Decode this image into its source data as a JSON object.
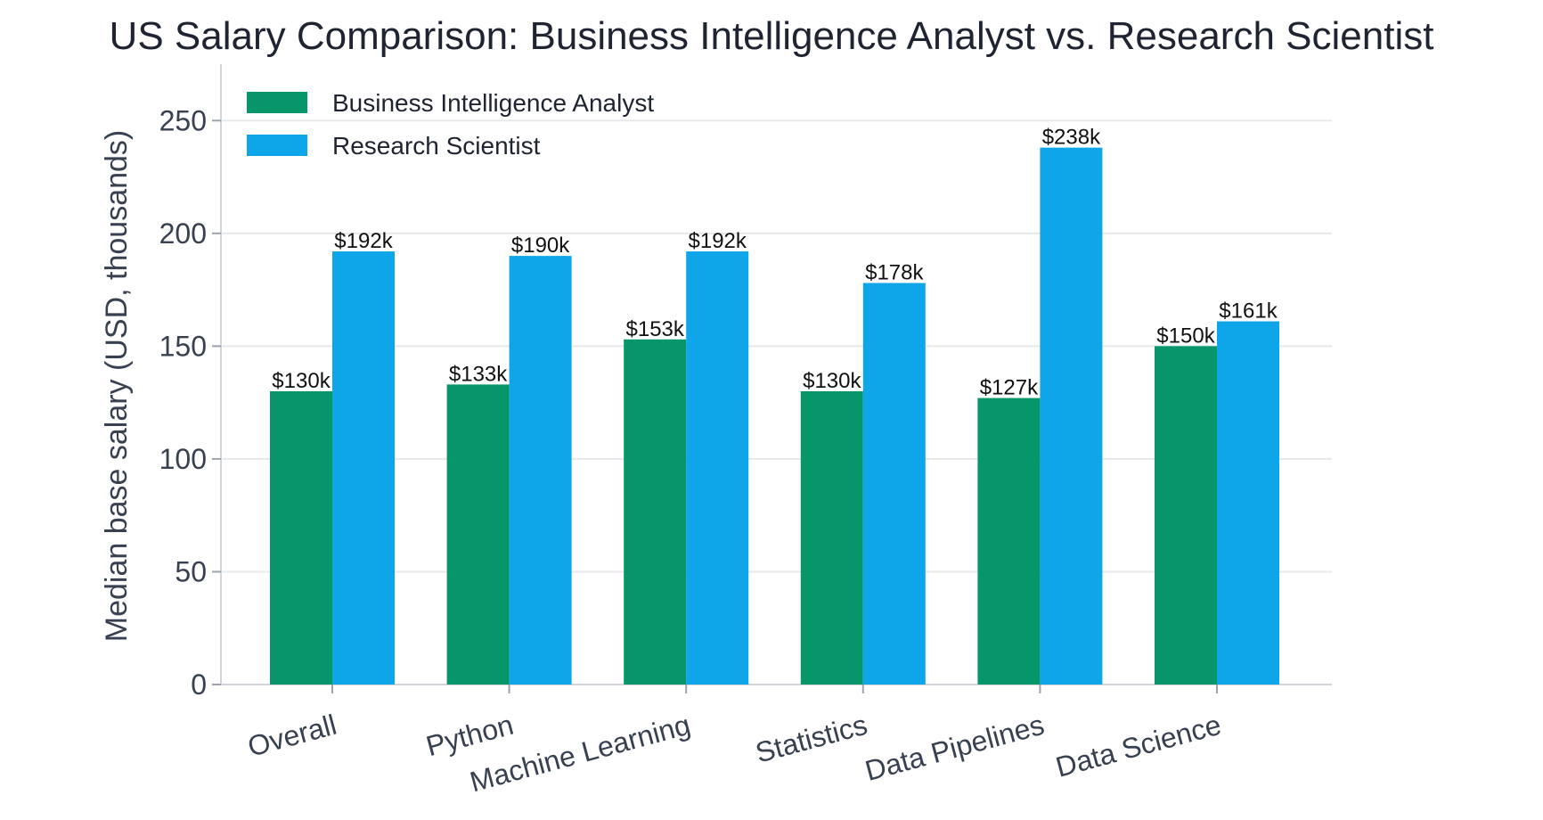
{
  "chart_data": {
    "type": "bar",
    "title": "US Salary Comparison: Business Intelligence Analyst vs. Research Scientist",
    "xlabel": "",
    "ylabel": "Median base salary (USD, thousands)",
    "ylim": [
      0,
      275
    ],
    "yticks": [
      0,
      50,
      100,
      150,
      200,
      250
    ],
    "grid": true,
    "legend_position": "top-left",
    "categories": [
      "Overall",
      "Python",
      "Machine Learning",
      "Statistics",
      "Data Pipelines",
      "Data Science"
    ],
    "series": [
      {
        "name": "Business Intelligence Analyst",
        "color": "#079669",
        "values": [
          130,
          133,
          153,
          130,
          127,
          150
        ],
        "labels": [
          "$130k",
          "$133k",
          "$153k",
          "$130k",
          "$127k",
          "$150k"
        ]
      },
      {
        "name": "Research Scientist",
        "color": "#0ea5e9",
        "values": [
          192,
          190,
          192,
          178,
          238,
          161
        ],
        "labels": [
          "$192k",
          "$190k",
          "$192k",
          "$178k",
          "$238k",
          "$161k"
        ]
      }
    ]
  }
}
